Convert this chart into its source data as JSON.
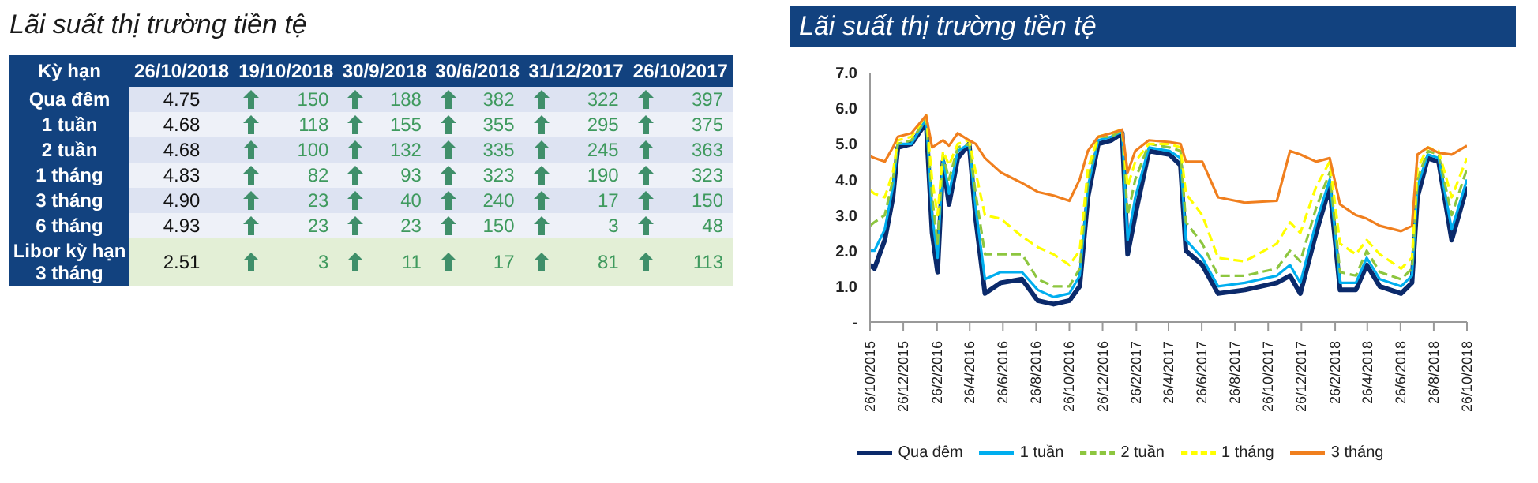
{
  "chart_data": [
    {
      "type": "other",
      "title": "Lãi suất thị trường tiền tệ",
      "ylabel": "Kỳ hạn",
      "categories": [
        "26/10/2018",
        "19/10/2018",
        "30/9/2018",
        "30/6/2018",
        "31/12/2017",
        "26/10/2017"
      ],
      "y_categories": [
        "Qua đêm",
        "1 tuần",
        "2 tuần",
        "1 tháng",
        "3 tháng",
        "6 tháng",
        "Libor kỳ hạn 3 tháng"
      ],
      "cell_labels": [
        [
          "4.75",
          "150",
          "188",
          "382",
          "322",
          "397"
        ],
        [
          "4.68",
          "118",
          "155",
          "355",
          "295",
          "375"
        ],
        [
          "4.68",
          "100",
          "132",
          "335",
          "245",
          "363"
        ],
        [
          "4.83",
          "82",
          "93",
          "323",
          "190",
          "323"
        ],
        [
          "4.90",
          "23",
          "40",
          "240",
          "17",
          "150"
        ],
        [
          "4.93",
          "23",
          "23",
          "150",
          "3",
          "48"
        ],
        [
          "2.51",
          "3",
          "11",
          "17",
          "81",
          "113"
        ]
      ]
    },
    {
      "type": "line",
      "title": "Lãi suất thị trường tiền tệ",
      "legend": "bottom",
      "x": [
        "2015-10-26",
        "2015-11-03",
        "2015-11-22",
        "2015-12-07",
        "2015-12-16",
        "2016-01-10",
        "2016-02-06",
        "2016-02-17",
        "2016-02-27",
        "2016-03-08",
        "2016-03-19",
        "2016-04-04",
        "2016-04-25",
        "2016-05-07",
        "2016-05-24",
        "2016-06-22",
        "2016-07-31",
        "2016-08-29",
        "2016-09-27",
        "2016-10-26",
        "2016-11-14",
        "2016-11-29",
        "2016-12-18",
        "2017-01-11",
        "2017-01-31",
        "2017-02-10",
        "2017-02-24",
        "2017-03-21",
        "2017-04-28",
        "2017-05-18",
        "2017-05-28",
        "2017-06-27",
        "2017-07-26",
        "2017-09-13",
        "2017-11-11",
        "2017-12-05",
        "2017-12-24",
        "2018-01-22",
        "2018-02-16",
        "2018-03-07",
        "2018-04-05",
        "2018-04-25",
        "2018-05-19",
        "2018-06-27",
        "2018-07-17",
        "2018-07-27",
        "2018-08-15",
        "2018-09-04",
        "2018-09-28",
        "2018-10-26"
      ],
      "xlim": [
        "2015-10-26",
        "2018-10-26"
      ],
      "xticks": [
        {
          "value": "2015-10-26",
          "label": "26/10/2015"
        },
        {
          "value": "2015-12-26",
          "label": "26/12/2015"
        },
        {
          "value": "2016-02-26",
          "label": "26/2/2016"
        },
        {
          "value": "2016-04-26",
          "label": "26/4/2016"
        },
        {
          "value": "2016-06-26",
          "label": "26/6/2016"
        },
        {
          "value": "2016-08-26",
          "label": "26/8/2016"
        },
        {
          "value": "2016-10-26",
          "label": "26/10/2016"
        },
        {
          "value": "2016-12-26",
          "label": "26/12/2016"
        },
        {
          "value": "2017-02-26",
          "label": "26/2/2017"
        },
        {
          "value": "2017-04-26",
          "label": "26/4/2017"
        },
        {
          "value": "2017-06-26",
          "label": "26/6/2017"
        },
        {
          "value": "2017-08-26",
          "label": "26/8/2017"
        },
        {
          "value": "2017-10-26",
          "label": "26/10/2017"
        },
        {
          "value": "2017-12-26",
          "label": "26/12/2017"
        },
        {
          "value": "2018-02-26",
          "label": "26/2/2018"
        },
        {
          "value": "2018-04-26",
          "label": "26/4/2018"
        },
        {
          "value": "2018-06-26",
          "label": "26/6/2018"
        },
        {
          "value": "2018-08-26",
          "label": "26/8/2018"
        },
        {
          "value": "2018-10-26",
          "label": "26/10/2018"
        }
      ],
      "ylim": [
        0,
        7
      ],
      "yticks": [
        {
          "value": 0,
          "label": "-"
        },
        {
          "value": 1,
          "label": "1.0"
        },
        {
          "value": 2,
          "label": "2.0"
        },
        {
          "value": 3,
          "label": "3.0"
        },
        {
          "value": 4,
          "label": "4.0"
        },
        {
          "value": 5,
          "label": "5.0"
        },
        {
          "value": 6,
          "label": "6.0"
        },
        {
          "value": 7,
          "label": "7.0"
        }
      ],
      "series": [
        {
          "name": "Qua đêm",
          "color": "#0b2a6b",
          "line_style": "solid",
          "values": [
            1.6,
            1.5,
            2.3,
            3.5,
            4.9,
            5.0,
            5.6,
            2.5,
            1.4,
            4.5,
            3.3,
            4.6,
            5.0,
            2.9,
            0.8,
            1.1,
            1.2,
            0.6,
            0.5,
            0.6,
            1.0,
            3.5,
            5.0,
            5.1,
            5.3,
            1.9,
            3.0,
            4.8,
            4.7,
            4.4,
            2.0,
            1.6,
            0.8,
            0.9,
            1.1,
            1.3,
            0.8,
            2.5,
            3.8,
            0.9,
            0.9,
            1.6,
            1.0,
            0.8,
            1.1,
            3.5,
            4.6,
            4.5,
            2.3,
            3.8
          ]
        },
        {
          "name": "1 tuần",
          "color": "#00aeef",
          "line_style": "solid",
          "values": [
            2.0,
            2.0,
            2.6,
            3.8,
            5.0,
            5.0,
            5.7,
            3.0,
            1.8,
            4.6,
            3.6,
            4.8,
            5.0,
            3.2,
            1.2,
            1.4,
            1.4,
            0.9,
            0.7,
            0.8,
            1.3,
            3.8,
            5.1,
            5.2,
            5.35,
            2.3,
            3.5,
            4.9,
            4.8,
            4.6,
            2.3,
            1.8,
            1.0,
            1.1,
            1.3,
            1.6,
            1.1,
            2.8,
            4.0,
            1.1,
            1.1,
            1.8,
            1.2,
            1.0,
            1.3,
            3.8,
            4.7,
            4.6,
            2.6,
            4.0
          ]
        },
        {
          "name": "2 tuần",
          "color": "#8dc63f",
          "line_style": "dashed",
          "values": [
            2.7,
            2.8,
            3.0,
            4.0,
            5.0,
            5.1,
            5.7,
            3.5,
            2.2,
            4.7,
            4.0,
            4.9,
            5.0,
            3.6,
            1.9,
            1.9,
            1.9,
            1.2,
            1.0,
            1.0,
            1.5,
            4.0,
            5.2,
            5.2,
            5.4,
            3.0,
            4.0,
            5.0,
            4.9,
            4.8,
            2.8,
            2.2,
            1.3,
            1.3,
            1.5,
            2.0,
            1.7,
            3.2,
            4.2,
            1.4,
            1.3,
            2.0,
            1.4,
            1.2,
            1.5,
            4.0,
            4.8,
            4.7,
            3.0,
            4.3
          ]
        },
        {
          "name": "1 tháng",
          "color": "#ffff00",
          "line_style": "dashed",
          "values": [
            3.7,
            3.6,
            3.5,
            4.2,
            5.1,
            5.2,
            5.8,
            4.0,
            3.0,
            4.8,
            4.4,
            5.0,
            5.1,
            4.2,
            3.0,
            2.9,
            2.4,
            2.1,
            1.9,
            1.6,
            2.0,
            4.3,
            5.2,
            5.3,
            5.4,
            3.8,
            4.5,
            5.0,
            5.0,
            4.9,
            3.6,
            3.0,
            1.8,
            1.7,
            2.2,
            2.8,
            2.5,
            3.8,
            4.5,
            2.2,
            1.9,
            2.3,
            1.9,
            1.5,
            1.8,
            4.3,
            4.9,
            4.8,
            3.5,
            4.6
          ]
        },
        {
          "name": "3 tháng",
          "color": "#f07f1e",
          "line_style": "solid",
          "values": [
            4.65,
            4.6,
            4.5,
            4.9,
            5.2,
            5.3,
            5.8,
            4.9,
            5.0,
            5.1,
            4.95,
            5.3,
            5.1,
            5.0,
            4.6,
            4.2,
            3.9,
            3.65,
            3.55,
            3.4,
            4.0,
            4.8,
            5.2,
            5.3,
            5.4,
            4.2,
            4.8,
            5.1,
            5.05,
            5.0,
            4.5,
            4.5,
            3.5,
            3.35,
            3.4,
            4.8,
            4.7,
            4.5,
            4.6,
            3.3,
            3.0,
            2.9,
            2.7,
            2.55,
            2.7,
            4.7,
            4.9,
            4.75,
            4.7,
            4.95
          ]
        }
      ]
    }
  ]
}
